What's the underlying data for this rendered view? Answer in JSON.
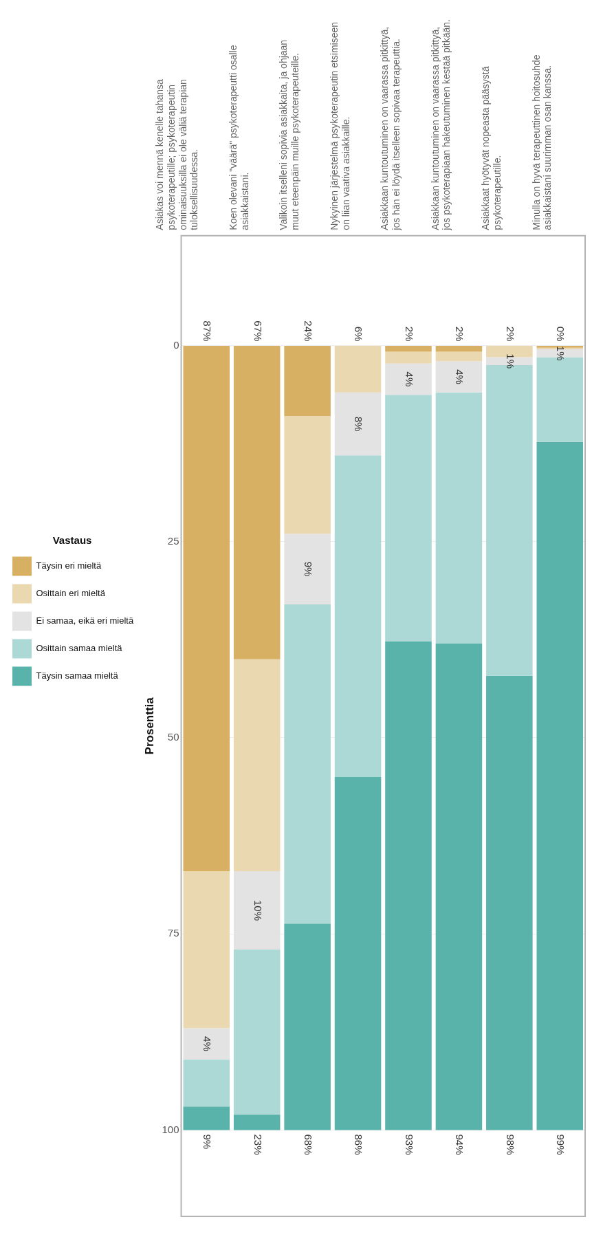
{
  "chart_data": {
    "type": "bar",
    "stacked": true,
    "ylabel": "Prosenttia",
    "legend_title": "Vastaus",
    "legend": "left",
    "grid": "y",
    "categories": [
      "Asiakas voi mennä kenelle tahansa psykoterapeutille; psykoterapeutin ominaisuuksilla ei ole väliä terapian tuloksellisuudessa.",
      "Koen olevani \"väärä\" psykoterapeutti osalle asiakkaistani.",
      "Valikoin itselleni sopivia asiakkaita, ja ohjaan muut eteenpäin muille psykoterapeuteille.",
      "Nykyinen järjestelmä psykoterapeutin etsimiseen on liian vaativa asiakkaille.",
      "Asiakkaan kuntoutuminen on vaarassa pitkittyä, jos hän ei löydä itselleen sopivaa terapeuttia.",
      "Asiakkaan kuntoutuminen on vaarassa pitkittyä, jos psykoterapiaan hakeutuminen kestää pitkään.",
      "Asiakkaat hyötyvät nopeasta pääsystä psykoterapeutille.",
      "Minulla on hyvä terapeuttinen hoitosuhde asiakkaistani suurimman osan kanssa."
    ],
    "ylim": [
      111,
      -14
    ],
    "yticks": [
      0,
      25,
      50,
      75,
      100
    ],
    "series": [
      {
        "name": "Täysin eri mieltä",
        "color": "#d8b064",
        "values": [
          67,
          40,
          9,
          0,
          0.8,
          0.8,
          0,
          0.3
        ]
      },
      {
        "name": "Osittain eri mieltä",
        "color": "#ead9b0",
        "values": [
          20,
          27,
          15,
          6,
          1.5,
          1.2,
          1.5,
          0.2
        ]
      },
      {
        "name": "Ei samaa, eikä eri mieltä",
        "color": "#e3e3e3",
        "values": [
          4,
          10,
          9,
          8,
          4,
          4,
          1,
          1
        ],
        "value_labels": [
          "4%",
          "10%",
          "9%",
          "8%",
          "4%",
          "4%",
          "1%",
          "1%"
        ]
      },
      {
        "name": "Osittain samaa mieltä",
        "color": "#acd8d5",
        "values": [
          6,
          21,
          40.7,
          41,
          31.4,
          32,
          39.6,
          10.8
        ]
      },
      {
        "name": "Täysin samaa mieltä",
        "color": "#5ab3ab",
        "values": [
          3,
          2,
          26.3,
          45,
          62.3,
          62,
          57.9,
          87.7
        ]
      }
    ],
    "annotations": [
      {
        "text": "87%",
        "x": "Asiakas voi mennä kenelle tahansa psykoterapeutille; psykoterapeutin ominaisuuksilla ei ole väliä terapian tuloksellisuudessa.",
        "y": 0
      },
      {
        "text": "67%",
        "x": "Koen olevani \"väärä\" psykoterapeutti osalle asiakkaistani.",
        "y": 0
      },
      {
        "text": "24%",
        "x": "Valikoin itselleni sopivia asiakkaita, ja ohjaan muut eteenpäin muille psykoterapeuteille.",
        "y": 0
      },
      {
        "text": "6%",
        "x": "Nykyinen järjestelmä psykoterapeutin etsimiseen on liian vaativa asiakkaille.",
        "y": 0
      },
      {
        "text": "2%",
        "x": "Asiakkaan kuntoutuminen on vaarassa pitkittyä, jos hän ei löydä itselleen sopivaa terapeuttia.",
        "y": 0
      },
      {
        "text": "2%",
        "x": "Asiakkaan kuntoutuminen on vaarassa pitkittyä, jos psykoterapiaan hakeutuminen kestää pitkään.",
        "y": 0
      },
      {
        "text": "2%",
        "x": "Asiakkaat hyötyvät nopeasta pääsystä psykoterapeutille.",
        "y": 0
      },
      {
        "text": "0%",
        "x": "Minulla on hyvä terapeuttinen hoitosuhde asiakkaistani suurimman osan kanssa.",
        "y": 0
      },
      {
        "text": "9%",
        "x": "Asiakas voi mennä kenelle tahansa psykoterapeutille; psykoterapeutin ominaisuuksilla ei ole väliä terapian tuloksellisuudessa.",
        "y": 100
      },
      {
        "text": "23%",
        "x": "Koen olevani \"väärä\" psykoterapeutti osalle asiakkaistani.",
        "y": 100
      },
      {
        "text": "68%",
        "x": "Valikoin itselleni sopivia asiakkaita, ja ohjaan muut eteenpäin muille psykoterapeuteille.",
        "y": 100
      },
      {
        "text": "86%",
        "x": "Nykyinen järjestelmä psykoterapeutin etsimiseen on liian vaativa asiakkaille.",
        "y": 100
      },
      {
        "text": "93%",
        "x": "Asiakkaan kuntoutuminen on vaarassa pitkittyä, jos hän ei löydä itselleen sopivaa terapeuttia.",
        "y": 100
      },
      {
        "text": "94%",
        "x": "Asiakkaan kuntoutuminen on vaarassa pitkittyä, jos psykoterapiaan hakeutuminen kestää pitkään.",
        "y": 100
      },
      {
        "text": "98%",
        "x": "Asiakkaat hyötyvät nopeasta pääsystä psykoterapeutille.",
        "y": 100
      },
      {
        "text": "99%",
        "x": "Minulla on hyvä terapeuttinen hoitosuhde asiakkaistani suurimman osan kanssa.",
        "y": 100
      }
    ]
  }
}
